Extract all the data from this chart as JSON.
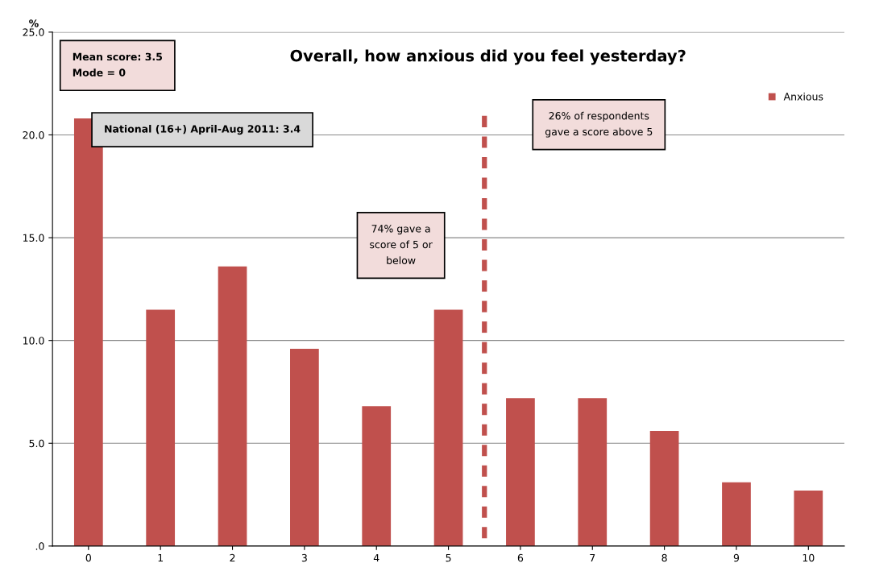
{
  "chart_data": {
    "type": "bar",
    "title": "Overall, how anxious did you feel yesterday?",
    "ylabel": "%",
    "categories": [
      "0",
      "1",
      "2",
      "3",
      "4",
      "5",
      "6",
      "7",
      "8",
      "9",
      "10"
    ],
    "series": [
      {
        "name": "Anxious",
        "color": "#c0504d",
        "values": [
          20.8,
          11.5,
          13.6,
          9.6,
          6.8,
          11.5,
          7.2,
          7.2,
          5.6,
          3.1,
          2.7
        ]
      }
    ],
    "ylim": [
      0,
      25
    ],
    "yticks": [
      {
        "value": 0,
        "label": ".0"
      },
      {
        "value": 5,
        "label": "5.0"
      },
      {
        "value": 10,
        "label": "10.0"
      },
      {
        "value": 15,
        "label": "15.0"
      },
      {
        "value": 20,
        "label": "20.0"
      },
      {
        "value": 25,
        "label": "25.0"
      }
    ],
    "annotations": [
      "Mean score: 3.5\nMode = 0",
      "National (16+) April-Aug 2011: 3.4",
      "74% gave a\nscore of 5 or\nbelow",
      "26% of respondents\ngave a score above 5"
    ],
    "grid": "y",
    "legend": "top right"
  }
}
